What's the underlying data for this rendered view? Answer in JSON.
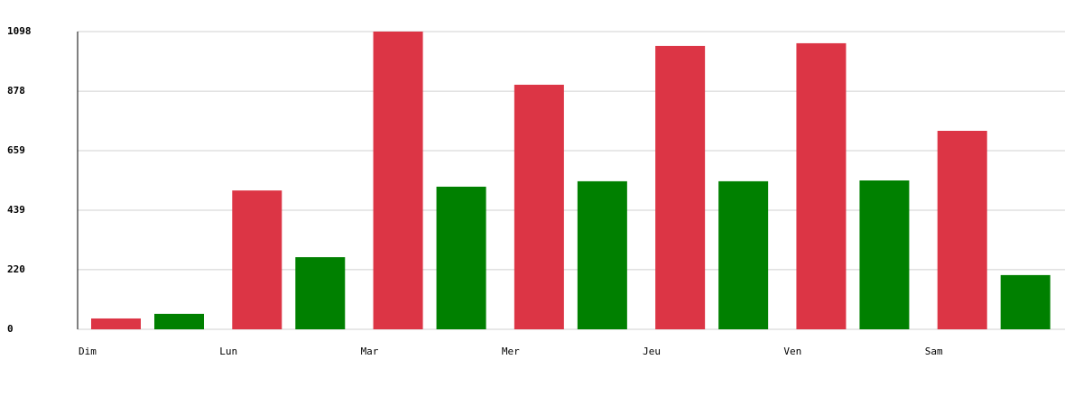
{
  "chart_data": {
    "type": "bar",
    "categories": [
      "Dim",
      "Lun",
      "Mar",
      "Mer",
      "Jeu",
      "Ven",
      "Sam"
    ],
    "series": [
      {
        "color": "#dc3545",
        "values": [
          40,
          512,
          1098,
          902,
          1045,
          1055,
          732
        ]
      },
      {
        "color": "#008000",
        "values": [
          57,
          266,
          526,
          546,
          546,
          549,
          200
        ]
      }
    ],
    "ylim": [
      0,
      1098
    ],
    "yticks": [
      0,
      220,
      439,
      659,
      878,
      1098
    ],
    "grid": true
  }
}
